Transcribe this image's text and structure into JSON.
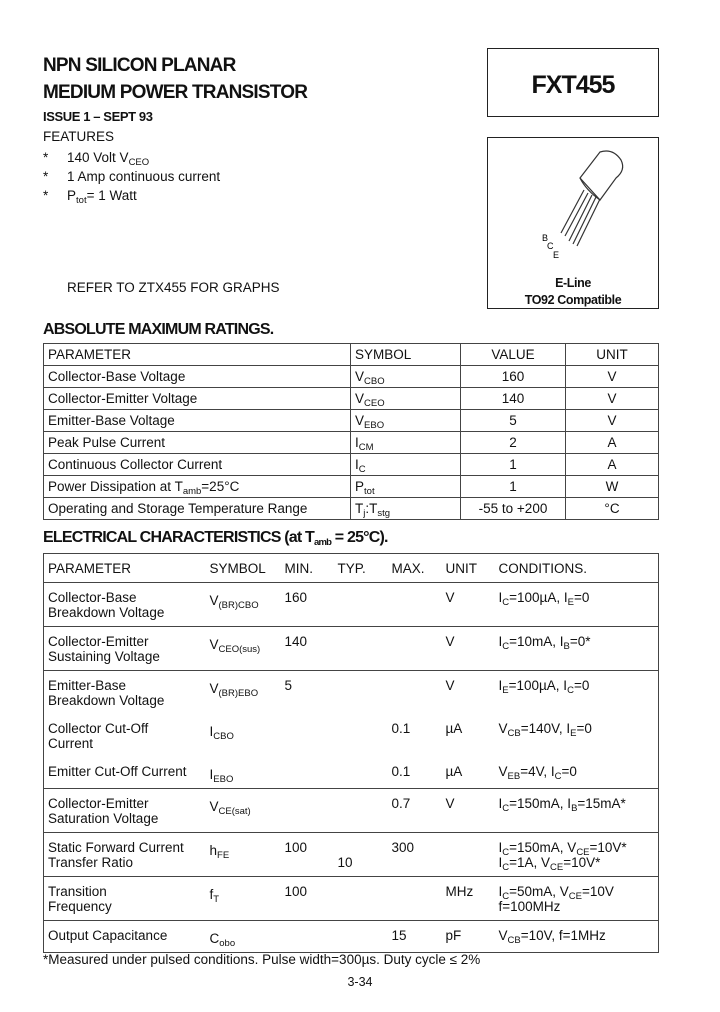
{
  "header": {
    "title_lines": [
      "NPN SILICON PLANAR",
      "MEDIUM POWER TRANSISTOR"
    ],
    "part": "FXT455",
    "issue": "ISSUE 1 – SEPT 93"
  },
  "features": {
    "heading": "FEATURES",
    "bullet": "*",
    "items": [
      [
        "140 Volt V",
        {
          "sub": "CEO"
        }
      ],
      [
        "1 Amp continuous current"
      ],
      [
        "P",
        {
          "sub": "tot"
        },
        "= 1 Watt"
      ]
    ]
  },
  "package": {
    "pins": [
      "B",
      "C",
      "E"
    ],
    "name": "E-Line",
    "compat": "TO92 Compatible"
  },
  "refer": "REFER TO ZTX455 FOR GRAPHS",
  "abs": {
    "heading": "ABSOLUTE MAXIMUM RATINGS.",
    "header": [
      "PARAMETER",
      "SYMBOL",
      "VALUE",
      "UNIT"
    ],
    "rows": [
      [
        "Collector-Base Voltage",
        [
          "V",
          {
            "sub": "CBO"
          }
        ],
        "160",
        "V"
      ],
      [
        "Collector-Emitter Voltage",
        [
          "V",
          {
            "sub": "CEO"
          }
        ],
        "140",
        "V"
      ],
      [
        "Emitter-Base Voltage",
        [
          "V",
          {
            "sub": "EBO"
          }
        ],
        "5",
        "V"
      ],
      [
        "Peak Pulse Current",
        [
          "I",
          {
            "sub": "CM"
          }
        ],
        "2",
        "A"
      ],
      [
        "Continuous Collector Current",
        [
          "I",
          {
            "sub": "C"
          }
        ],
        "1",
        "A"
      ],
      [
        [
          "Power Dissipation at T",
          {
            "sub": "amb"
          },
          "=25°C"
        ],
        [
          "P",
          {
            "sub": "tot"
          }
        ],
        "1",
        "W"
      ],
      [
        "Operating and Storage Temperature Range",
        [
          "T",
          {
            "sub": "j"
          },
          ":T",
          {
            "sub": "stg"
          }
        ],
        "-55 to +200",
        "°C"
      ]
    ]
  },
  "elec": {
    "heading": [
      "ELECTRICAL CHARACTERISTICS (at T",
      {
        "sub": "amb"
      },
      " = 25°C)."
    ],
    "header": [
      "PARAMETER",
      "SYMBOL",
      "MIN.",
      "TYP.",
      "MAX.",
      "UNIT",
      "CONDITIONS."
    ],
    "rows": [
      [
        [
          "Collector-Base",
          "Breakdown Voltage"
        ],
        [
          [
            "V",
            {
              "sub": "(BR)CBO"
            }
          ]
        ],
        [
          "160"
        ],
        [],
        [],
        [
          "V"
        ],
        [
          [
            "I",
            {
              "sub": "C"
            },
            "=100µA, I",
            {
              "sub": "E"
            },
            "=0"
          ]
        ]
      ],
      [
        [
          "Collector-Emitter",
          "Sustaining Voltage"
        ],
        [
          [
            "V",
            {
              "sub": "CEO(sus)"
            }
          ]
        ],
        [
          "140"
        ],
        [],
        [],
        [
          "V"
        ],
        [
          [
            "I",
            {
              "sub": "C"
            },
            "=10mA, I",
            {
              "sub": "B"
            },
            "=0*"
          ]
        ]
      ],
      [
        [
          "Emitter-Base",
          "Breakdown Voltage"
        ],
        [
          [
            "V",
            {
              "sub": "(BR)EBO"
            }
          ]
        ],
        [
          "5"
        ],
        [],
        [],
        [
          "V"
        ],
        [
          [
            "I",
            {
              "sub": "E"
            },
            "=100µA, I",
            {
              "sub": "C"
            },
            "=0"
          ]
        ]
      ],
      [
        [
          "Collector Cut-Off",
          "Current"
        ],
        [
          [
            "I",
            {
              "sub": "CBO"
            }
          ]
        ],
        [],
        [],
        [
          "0.1"
        ],
        [
          "µA"
        ],
        [
          [
            "V",
            {
              "sub": "CB"
            },
            "=140V, I",
            {
              "sub": "E"
            },
            "=0"
          ]
        ]
      ],
      [
        [
          "Emitter Cut-Off Current"
        ],
        [
          [
            "I",
            {
              "sub": "EBO"
            }
          ]
        ],
        [],
        [],
        [
          "0.1"
        ],
        [
          "µA"
        ],
        [
          [
            "V",
            {
              "sub": "EB"
            },
            "=4V, I",
            {
              "sub": "C"
            },
            "=0"
          ]
        ]
      ],
      [
        [
          "Collector-Emitter",
          "Saturation Voltage"
        ],
        [
          [
            "V",
            {
              "sub": "CE(sat)"
            }
          ]
        ],
        [],
        [],
        [
          "0.7"
        ],
        [
          "V"
        ],
        [
          [
            "I",
            {
              "sub": "C"
            },
            "=150mA, I",
            {
              "sub": "B"
            },
            "=15mA*"
          ]
        ]
      ],
      [
        [
          "Static Forward Current",
          "Transfer Ratio"
        ],
        [
          [
            "h",
            {
              "sub": "FE"
            }
          ]
        ],
        [
          "100"
        ],
        [
          "10"
        ],
        [
          "300"
        ],
        [],
        [
          [
            "I",
            {
              "sub": "C"
            },
            "=150mA, V",
            {
              "sub": "CE"
            },
            "=10V*"
          ],
          [
            "I",
            {
              "sub": "C"
            },
            "=1A, V",
            {
              "sub": "CE"
            },
            "=10V*"
          ]
        ]
      ],
      [
        [
          "Transition",
          "Frequency"
        ],
        [
          [
            "f",
            {
              "sub": "T"
            }
          ]
        ],
        [
          "100"
        ],
        [],
        [],
        [
          "MHz"
        ],
        [
          [
            "I",
            {
              "sub": "C"
            },
            "=50mA, V",
            {
              "sub": "CE"
            },
            "=10V"
          ],
          "f=100MHz"
        ]
      ],
      [
        [
          "Output Capacitance"
        ],
        [
          [
            "C",
            {
              "sub": "obo"
            }
          ]
        ],
        [],
        [],
        [
          "15"
        ],
        [
          "pF"
        ],
        [
          [
            "V",
            {
              "sub": "CB"
            },
            "=10V, f=1MHz"
          ]
        ]
      ]
    ]
  },
  "footnote": "*Measured under pulsed conditions. Pulse width=300µs. Duty cycle ≤ 2%",
  "page": "3-34"
}
